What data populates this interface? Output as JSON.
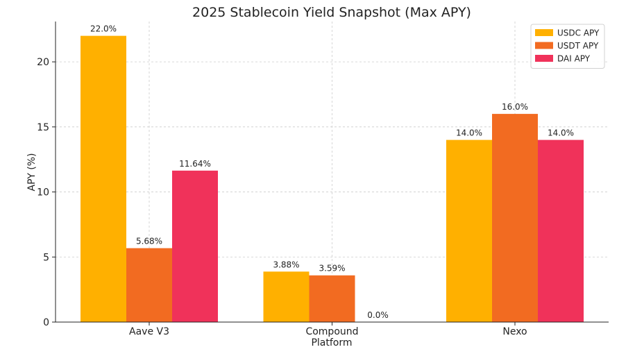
{
  "chart_data": {
    "type": "bar",
    "title": "2025 Stablecoin Yield Snapshot (Max APY)",
    "xlabel": "Platform",
    "ylabel": "APY (%)",
    "categories": [
      "Aave V3",
      "Compound",
      "Nexo"
    ],
    "series": [
      {
        "name": "USDC APY",
        "color": "#FFB000",
        "values": [
          22.0,
          3.88,
          14.0
        ],
        "labels": [
          "22.0%",
          "3.88%",
          "14.0%"
        ]
      },
      {
        "name": "USDT APY",
        "color": "#F26B21",
        "values": [
          5.68,
          3.59,
          16.0
        ],
        "labels": [
          "5.68%",
          "3.59%",
          "16.0%"
        ]
      },
      {
        "name": "DAI APY",
        "color": "#F0325A",
        "values": [
          11.64,
          0.0,
          14.0
        ],
        "labels": [
          "11.64%",
          "0.0%",
          "14.0%"
        ]
      }
    ],
    "ylim": [
      0,
      23.1
    ],
    "yticks": [
      0,
      5,
      10,
      15,
      20
    ],
    "grid": true,
    "legend_position": "top-right"
  }
}
